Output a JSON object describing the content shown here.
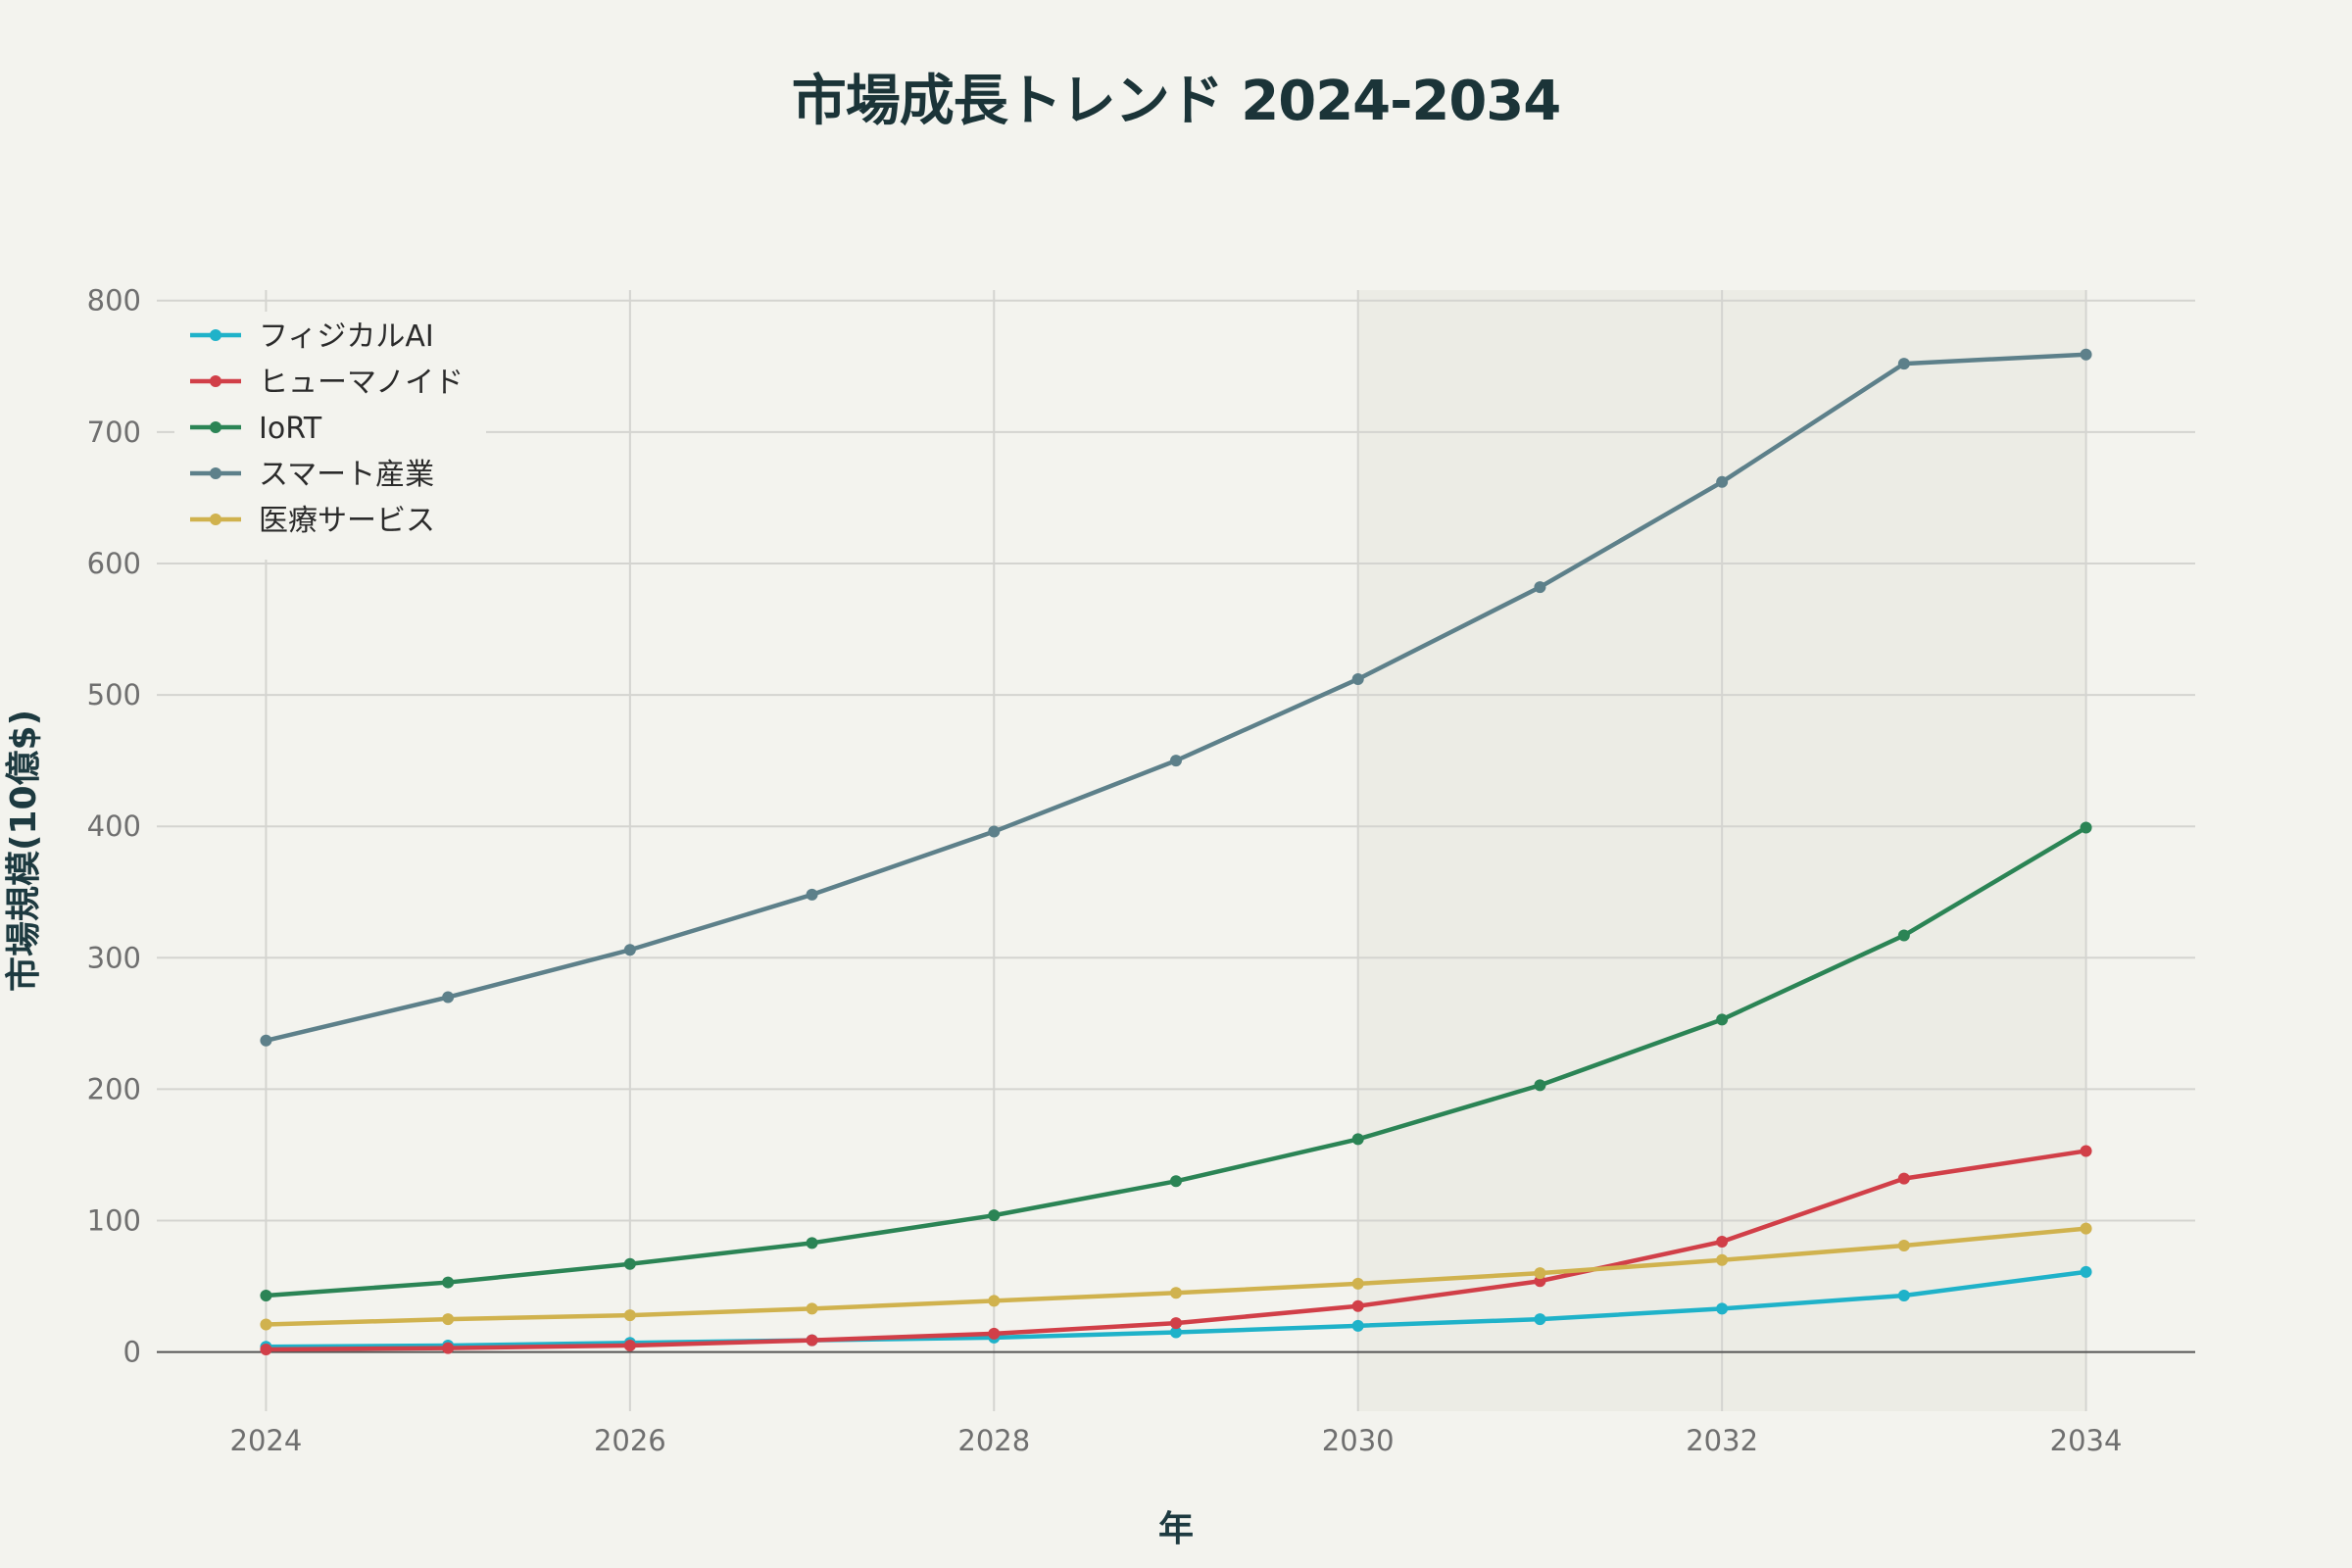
{
  "chart_data": {
    "type": "line",
    "title": "市場成長トレンド 2024-2034",
    "xlabel": "年",
    "ylabel": "市場規模(10億$)",
    "x": [
      2024,
      2025,
      2026,
      2027,
      2028,
      2029,
      2030,
      2031,
      2032,
      2033,
      2034
    ],
    "xlim": [
      2023.4,
      2034.6
    ],
    "ylim": [
      -45,
      808
    ],
    "xticks": [
      "2024",
      "2026",
      "2028",
      "2030",
      "2032",
      "2034"
    ],
    "yticks": [
      "0",
      "100",
      "200",
      "300",
      "400",
      "500",
      "600",
      "700",
      "800"
    ],
    "shaded_region": [
      2030,
      2034
    ],
    "grid": true,
    "legend_position": "top-left",
    "series": [
      {
        "name": "フィジカルAI",
        "color": "#1fb2c9",
        "values": [
          4,
          5,
          7,
          9,
          11,
          15,
          20,
          25,
          33,
          43,
          61
        ]
      },
      {
        "name": "ヒューマノイド",
        "color": "#d13f48",
        "values": [
          2,
          3,
          5,
          9,
          14,
          22,
          35,
          54,
          84,
          132,
          153
        ]
      },
      {
        "name": "IoRT",
        "color": "#2b8455",
        "values": [
          43,
          53,
          67,
          83,
          104,
          130,
          162,
          203,
          253,
          317,
          399
        ]
      },
      {
        "name": "スマート産業",
        "color": "#5d808a",
        "values": [
          237,
          270,
          306,
          348,
          396,
          450,
          512,
          582,
          662,
          752,
          759
        ]
      },
      {
        "name": "医療サービス",
        "color": "#d0b24e",
        "values": [
          21,
          25,
          28,
          33,
          39,
          45,
          52,
          60,
          70,
          81,
          94
        ]
      }
    ]
  }
}
